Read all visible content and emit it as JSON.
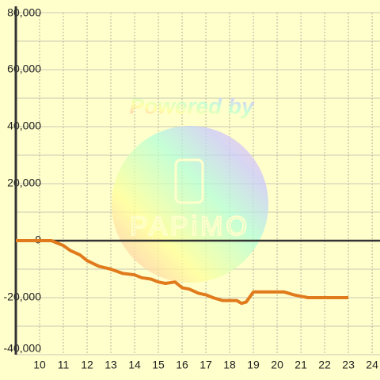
{
  "chart_data": {
    "type": "line",
    "x": [
      9,
      10.5,
      11,
      11.3,
      11.7,
      12,
      12.5,
      13,
      13.5,
      14,
      14.3,
      14.7,
      15,
      15.3,
      15.7,
      16,
      16.3,
      16.7,
      17,
      17.3,
      17.7,
      18,
      18.3,
      18.5,
      18.7,
      19,
      19.5,
      20,
      20.3,
      20.7,
      21,
      21.3,
      22,
      23
    ],
    "series": [
      {
        "color": "#e07a1c",
        "values": [
          0,
          0,
          -1700,
          -3500,
          -5000,
          -7000,
          -9000,
          -10000,
          -11500,
          -12000,
          -13000,
          -13500,
          -14500,
          -15000,
          -14500,
          -16500,
          -17000,
          -18500,
          -19000,
          -20000,
          -21000,
          -21000,
          -21000,
          -22000,
          -21500,
          -18000,
          -18000,
          -18000,
          -18000,
          -19000,
          -19500,
          -20000,
          -20000,
          -20000
        ]
      }
    ],
    "xlim": [
      9,
      24.33
    ],
    "xticks": [
      10,
      11,
      12,
      13,
      14,
      15,
      16,
      17,
      18,
      19,
      20,
      21,
      22,
      23,
      24
    ],
    "ylim": [
      -40000,
      80000
    ],
    "yticks": [
      {
        "value": -40000,
        "label": "-40,000"
      },
      {
        "value": -20000,
        "label": "-20,000"
      },
      0,
      {
        "value": 20000,
        "label": "20,000"
      },
      {
        "value": 40000,
        "label": "40,000"
      },
      {
        "value": 60000,
        "label": "60,000"
      },
      {
        "value": 80000,
        "label": "80,000"
      }
    ],
    "yminor": [
      -30000,
      -10000,
      10000,
      30000,
      50000,
      70000
    ],
    "grid": true,
    "watermark": {
      "text": "Powered by",
      "logo": "PAPiMO"
    }
  }
}
